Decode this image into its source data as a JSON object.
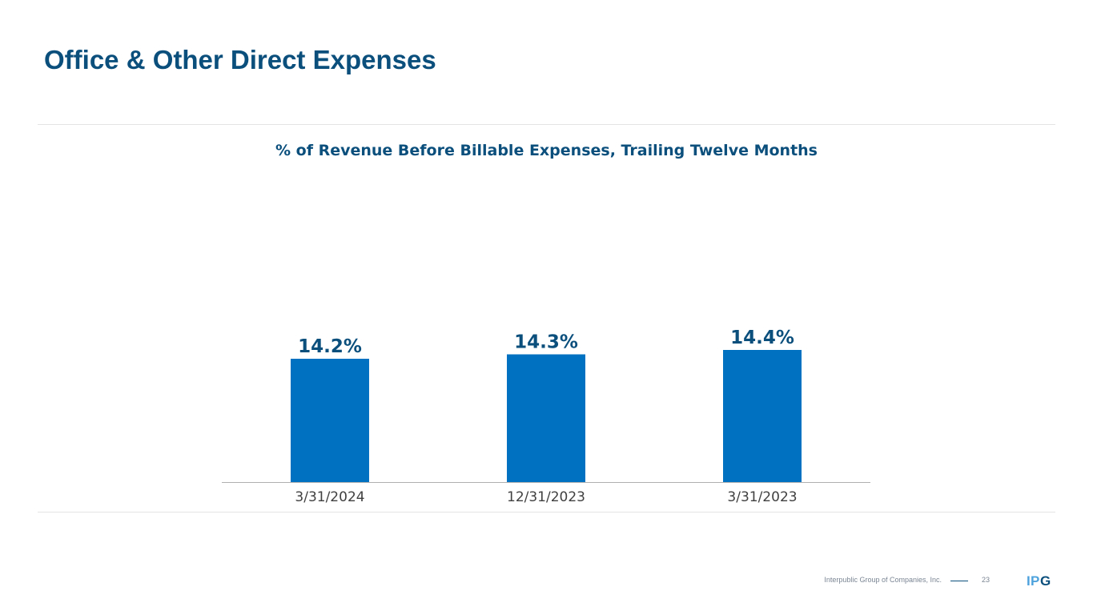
{
  "page": {
    "title": "Office & Other Direct Expenses"
  },
  "chart_data": {
    "type": "bar",
    "title": "% of Revenue Before Billable Expenses, Trailing Twelve Months",
    "categories": [
      "3/31/2024",
      "12/31/2023",
      "3/31/2023"
    ],
    "values": [
      14.2,
      14.3,
      14.4
    ],
    "data_labels": [
      "14.2%",
      "14.3%",
      "14.4%"
    ],
    "unit": "%",
    "xlabel": "",
    "ylabel": "",
    "ylim": [
      0,
      15
    ],
    "grid": false,
    "legend": "none",
    "bar_color": "#0070c0",
    "label_color": "#0b4f7d",
    "axis_color": "#b0b0b0"
  },
  "footer": {
    "company": "Interpublic Group of Companies, Inc.",
    "page_number": "23",
    "logo": "IPG"
  },
  "colors": {
    "title": "#0b4f7d",
    "footer_text": "#7a8593",
    "logo_dark": "#0b4f7d",
    "logo_light": "#4fa3dd"
  }
}
